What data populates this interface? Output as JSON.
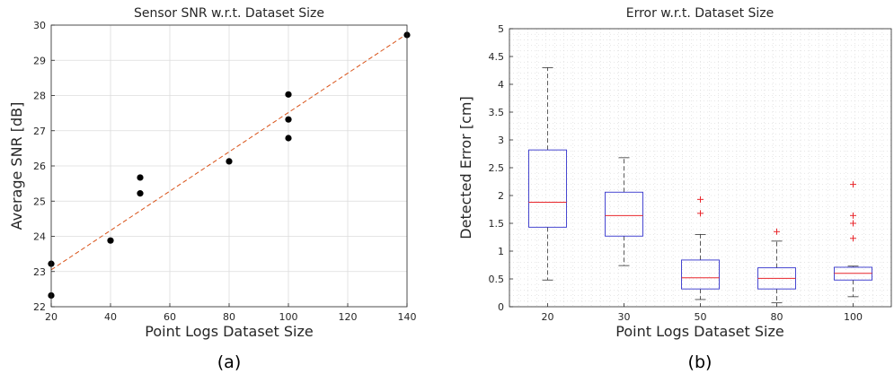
{
  "chart_data": [
    {
      "type": "scatter",
      "title": "Sensor SNR w.r.t. Dataset Size",
      "xlabel": "Point Logs Dataset Size",
      "ylabel": "Average SNR [dB]",
      "caption": "(a)",
      "xlim": [
        20,
        140
      ],
      "ylim": [
        22,
        30
      ],
      "xticks": [
        "20",
        "40",
        "60",
        "80",
        "100",
        "120",
        "140"
      ],
      "yticks": [
        "22",
        "23",
        "24",
        "25",
        "26",
        "27",
        "28",
        "29",
        "30"
      ],
      "grid": true,
      "points": [
        {
          "x": 20,
          "y": 23.22
        },
        {
          "x": 20,
          "y": 22.32
        },
        {
          "x": 40,
          "y": 23.88
        },
        {
          "x": 50,
          "y": 25.67
        },
        {
          "x": 50,
          "y": 25.22
        },
        {
          "x": 80,
          "y": 26.13
        },
        {
          "x": 100,
          "y": 28.03
        },
        {
          "x": 100,
          "y": 27.32
        },
        {
          "x": 100,
          "y": 26.79
        },
        {
          "x": 140,
          "y": 29.72
        }
      ],
      "fit_line": {
        "x": [
          20,
          140
        ],
        "y": [
          23.05,
          29.75
        ],
        "color": "#d95319",
        "style": "dashed"
      },
      "marker_color": "#000000"
    },
    {
      "type": "box",
      "title": "Error w.r.t. Dataset Size",
      "xlabel": "Point Logs Dataset Size",
      "ylabel": "Detected Error [cm]",
      "caption": "(b)",
      "ylim": [
        0,
        5
      ],
      "yticks": [
        "0",
        "0.5",
        "1",
        "1.5",
        "2",
        "2.5",
        "3",
        "3.5",
        "4",
        "4.5",
        "5"
      ],
      "grid": "minor-dotted",
      "categories": [
        "20",
        "30",
        "50",
        "80",
        "100"
      ],
      "boxes": [
        {
          "category": "20",
          "whisker_low": 0.48,
          "q1": 1.43,
          "median": 1.88,
          "q3": 2.82,
          "whisker_high": 4.3,
          "outliers": []
        },
        {
          "category": "30",
          "whisker_low": 0.74,
          "q1": 1.27,
          "median": 1.64,
          "q3": 2.06,
          "whisker_high": 2.68,
          "outliers": []
        },
        {
          "category": "50",
          "whisker_low": 0.13,
          "q1": 0.32,
          "median": 0.52,
          "q3": 0.84,
          "whisker_high": 1.3,
          "outliers": [
            1.68,
            1.93
          ]
        },
        {
          "category": "80",
          "whisker_low": 0.07,
          "q1": 0.32,
          "median": 0.51,
          "q3": 0.7,
          "whisker_high": 1.18,
          "outliers": [
            1.35
          ]
        },
        {
          "category": "100",
          "whisker_low": 0.18,
          "q1": 0.48,
          "median": 0.6,
          "q3": 0.71,
          "whisker_high": 0.73,
          "outliers": [
            1.23,
            1.5,
            1.64,
            2.2
          ]
        }
      ],
      "box_color": "#3333cc",
      "median_color": "#e8262b",
      "outlier_color": "#e8262b"
    }
  ]
}
